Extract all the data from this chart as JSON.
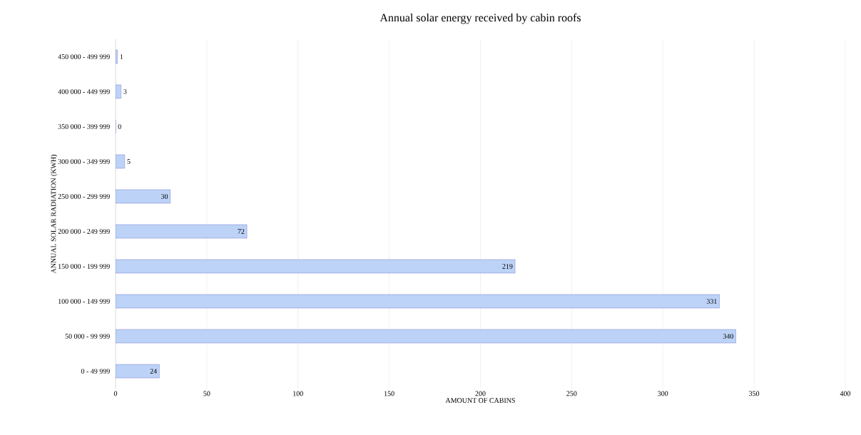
{
  "chart_data": {
    "type": "bar",
    "orientation": "horizontal",
    "title": "Annual solar energy received by cabin roofs",
    "xlabel": "AMOUNT OF CABINS",
    "ylabel": "ANNUAL SOLAR RADIATION (KWH)",
    "categories": [
      "450 000 - 499 999",
      "400 000 - 449 999",
      "350 000 - 399 999",
      "300 000 - 349 999",
      "250 000 - 299 999",
      "200 000 - 249 999",
      "150 000 - 199 999",
      "100 000 - 149 999",
      "50 000 - 99 999",
      "0 - 49 999"
    ],
    "values": [
      1,
      3,
      0,
      5,
      30,
      72,
      219,
      331,
      340,
      24
    ],
    "color": "#bcd3f7",
    "xlim": [
      0,
      400
    ],
    "xticks": [
      0,
      50,
      100,
      150,
      200,
      250,
      300,
      350,
      400
    ],
    "grid": "x",
    "data_labels": true
  }
}
